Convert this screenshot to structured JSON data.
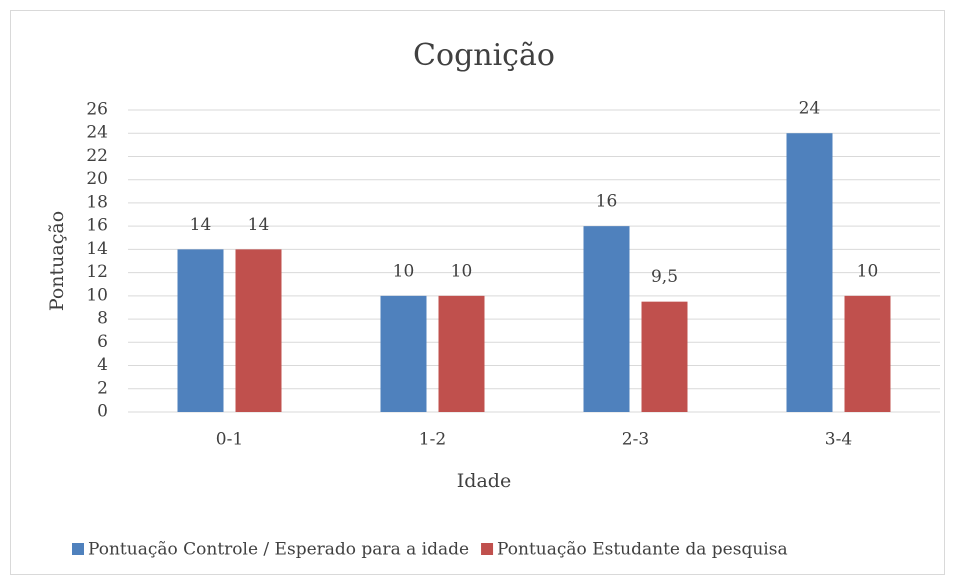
{
  "chart_data": {
    "type": "bar",
    "title": "Cognição",
    "x_label": "Idade",
    "y_label": "Pontuação",
    "categories": [
      "0-1",
      "1-2",
      "2-3",
      "3-4"
    ],
    "series": [
      {
        "name": "Pontuação Controle / Esperado para a idade",
        "color": "#4f81bd",
        "values": [
          14,
          10,
          16,
          24
        ]
      },
      {
        "name": "Pontuação Estudante da pesquisa",
        "color": "#c0504d",
        "values": [
          14,
          10,
          9.5,
          10
        ],
        "value_labels": [
          "14",
          "10",
          "9,5",
          "10"
        ]
      }
    ],
    "ylim": [
      0,
      26
    ],
    "yticks": [
      0,
      2,
      4,
      6,
      8,
      10,
      12,
      14,
      16,
      18,
      20,
      22,
      24,
      26
    ],
    "grid": true,
    "legend": "bottom"
  }
}
